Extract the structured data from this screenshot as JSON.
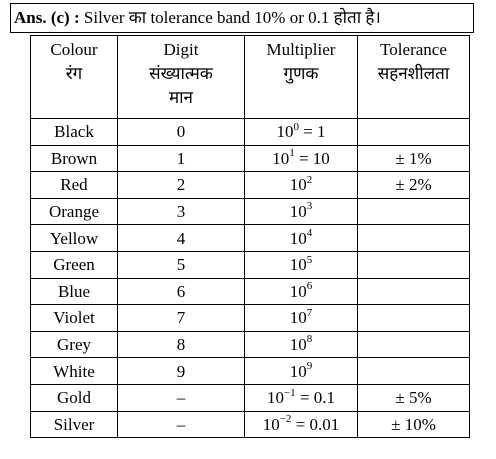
{
  "header": {
    "label": "Ans. (c) :",
    "text": "Silver का tolerance band 10% or 0.1 होता है।"
  },
  "table": {
    "columns": [
      [
        "Colour",
        "रंग"
      ],
      [
        "Digit",
        "संख्यात्मक",
        "मान"
      ],
      [
        "Multiplier",
        "गुणक"
      ],
      [
        "Tolerance",
        "सहनशीलता"
      ]
    ],
    "rows": [
      {
        "color": "Black",
        "digit": "0",
        "multiplier": {
          "base": "10",
          "exp": "0",
          "suffix": " = 1"
        }
      },
      {
        "color": "Brown",
        "digit": "1",
        "multiplier": {
          "base": "10",
          "exp": "1",
          "suffix": " = 10"
        },
        "tolerance": "± 1%"
      },
      {
        "color": "Red",
        "digit": "2",
        "multiplier": {
          "base": "10",
          "exp": "2"
        },
        "tolerance": "± 2%"
      },
      {
        "color": "Orange",
        "digit": "3",
        "multiplier": {
          "base": "10",
          "exp": "3"
        }
      },
      {
        "color": "Yellow",
        "digit": "4",
        "multiplier": {
          "base": "10",
          "exp": "4"
        }
      },
      {
        "color": "Green",
        "digit": "5",
        "multiplier": {
          "base": "10",
          "exp": "5"
        }
      },
      {
        "color": "Blue",
        "digit": "6",
        "multiplier": {
          "base": "10",
          "exp": "6"
        }
      },
      {
        "color": "Violet",
        "digit": "7",
        "multiplier": {
          "base": "10",
          "exp": "7"
        }
      },
      {
        "color": "Grey",
        "digit": "8",
        "multiplier": {
          "base": "10",
          "exp": "8"
        }
      },
      {
        "color": "White",
        "digit": "9",
        "multiplier": {
          "base": "10",
          "exp": "9"
        }
      },
      {
        "color": "Gold",
        "digit": "–",
        "multiplier": {
          "base": "10",
          "exp": "−1",
          "suffix": " = 0.1"
        },
        "tolerance": "± 5%"
      },
      {
        "color": "Silver",
        "digit": "–",
        "multiplier": {
          "base": "10",
          "exp": "−2",
          "suffix": " = 0.01"
        },
        "tolerance": "± 10%"
      }
    ]
  }
}
